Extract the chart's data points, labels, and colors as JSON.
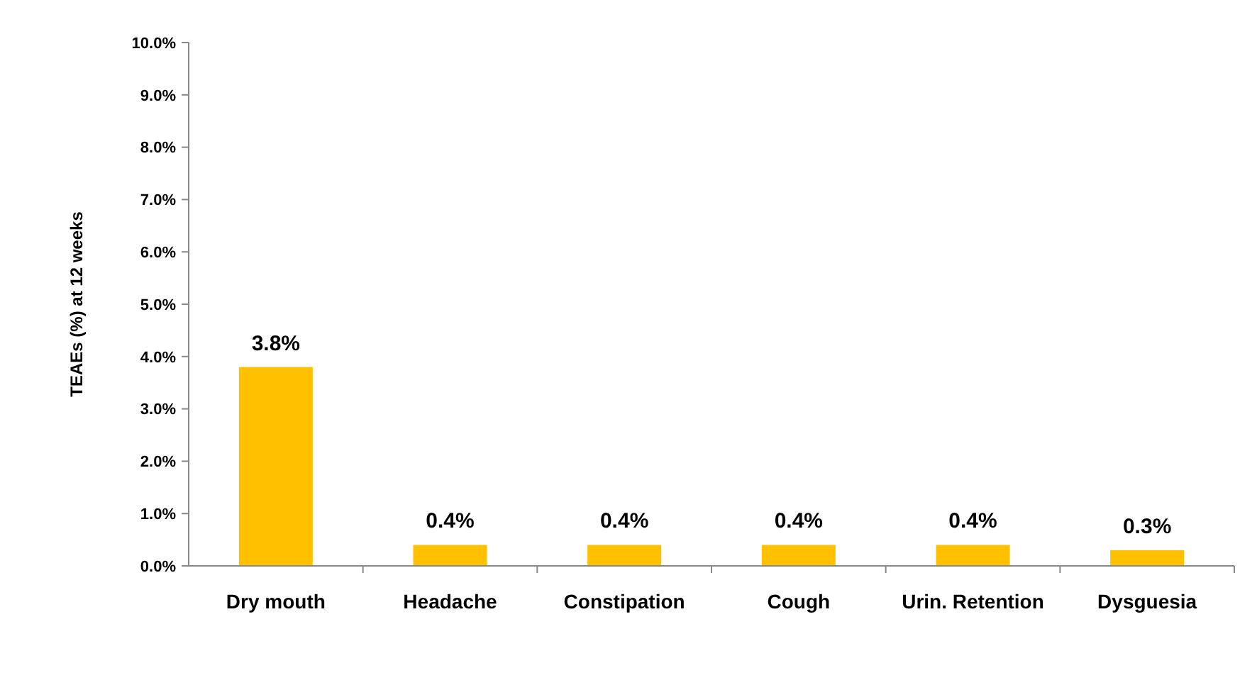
{
  "chart_data": {
    "type": "bar",
    "ylabel": "TEAEs (%) at 12 weeks",
    "categories": [
      "Dry mouth",
      "Headache",
      "Constipation",
      "Cough",
      "Urin. Retention",
      "Dysguesia"
    ],
    "values": [
      3.8,
      0.4,
      0.4,
      0.4,
      0.4,
      0.3
    ],
    "value_labels": [
      "3.8%",
      "0.4%",
      "0.4%",
      "0.4%",
      "0.4%",
      "0.3%"
    ],
    "color": "#ffc000",
    "ylim": [
      0,
      10
    ],
    "yticks": [
      {
        "value": 0,
        "label": "0.0%"
      },
      {
        "value": 1,
        "label": "1.0%"
      },
      {
        "value": 2,
        "label": "2.0%"
      },
      {
        "value": 3,
        "label": "3.0%"
      },
      {
        "value": 4,
        "label": "4.0%"
      },
      {
        "value": 5,
        "label": "5.0%"
      },
      {
        "value": 6,
        "label": "6.0%"
      },
      {
        "value": 7,
        "label": "7.0%"
      },
      {
        "value": 8,
        "label": "8.0%"
      },
      {
        "value": 9,
        "label": "9.0%"
      },
      {
        "value": 10,
        "label": "10.0%"
      }
    ],
    "grid": false,
    "legend": false
  }
}
